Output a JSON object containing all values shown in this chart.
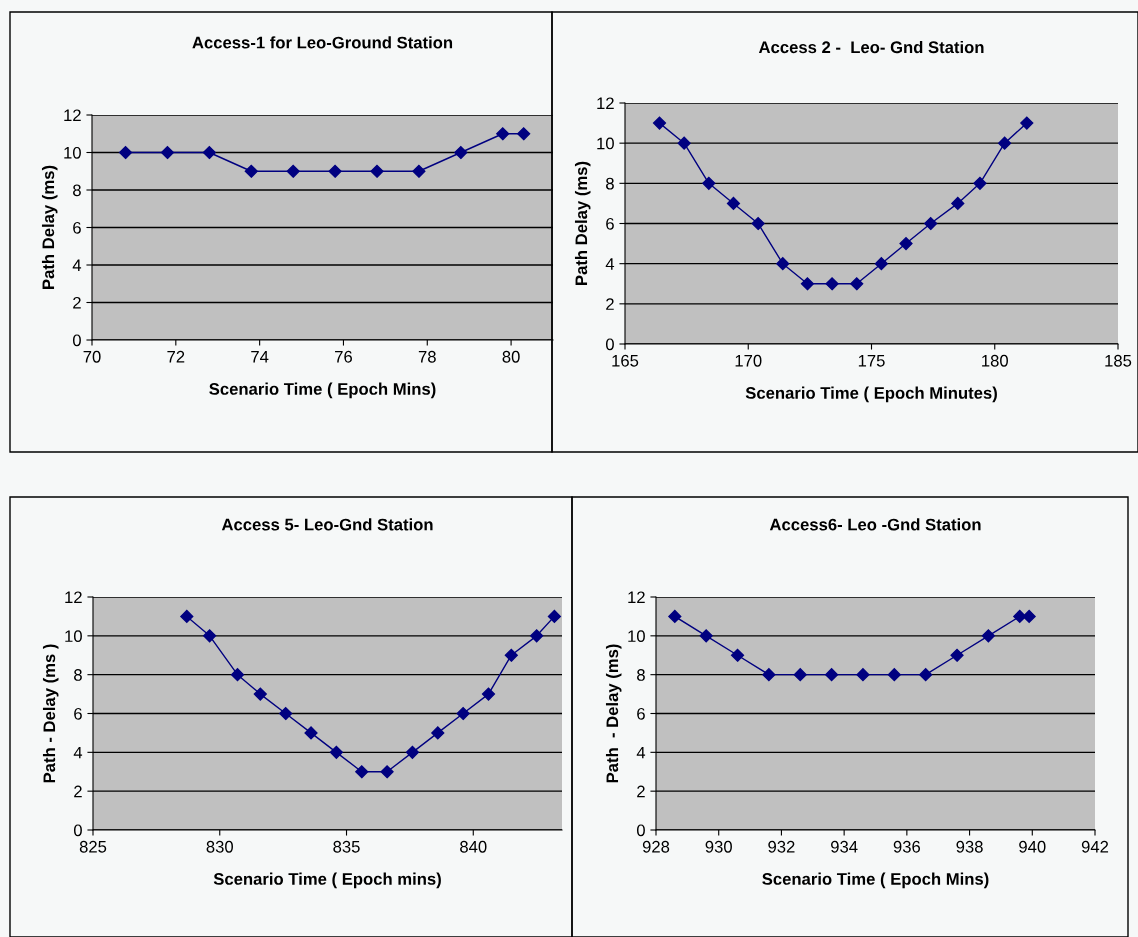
{
  "chart_data": [
    {
      "type": "line",
      "title": "Access-1 for Leo-Ground Station",
      "xlabel": "Scenario Time ( Epoch Mins)",
      "ylabel": "Path Delay (ms)",
      "x": [
        70.8,
        71.8,
        72.8,
        73.8,
        74.8,
        75.8,
        76.8,
        77.8,
        78.8,
        79.8,
        80.3
      ],
      "series": [
        {
          "color": "#000080",
          "values": [
            10,
            10,
            10,
            9,
            9,
            9,
            9,
            9,
            10,
            11,
            11
          ]
        }
      ],
      "xlim": [
        70,
        81
      ],
      "xticks": [
        70,
        72,
        74,
        76,
        78,
        80
      ],
      "ylim": [
        0,
        12
      ],
      "yticks": [
        0,
        2,
        4,
        6,
        8,
        10,
        12
      ],
      "grid": "y",
      "marker": "diamond",
      "legend": false
    },
    {
      "type": "line",
      "title": "Access 2 -  Leo- Gnd Station",
      "xlabel": "Scenario Time ( Epoch Minutes)",
      "ylabel": "Path Delay (ms)",
      "x": [
        166.4,
        167.4,
        168.4,
        169.4,
        170.4,
        171.4,
        172.4,
        173.4,
        174.4,
        175.4,
        176.4,
        177.4,
        178.5,
        179.4,
        180.4,
        181.3
      ],
      "series": [
        {
          "color": "#000080",
          "values": [
            11,
            10,
            8,
            7,
            6,
            4,
            3,
            3,
            3,
            4,
            5,
            6,
            7,
            8,
            10,
            11
          ]
        }
      ],
      "xlim": [
        165,
        185
      ],
      "xticks": [
        165,
        170,
        175,
        180,
        185
      ],
      "ylim": [
        0,
        12
      ],
      "yticks": [
        0,
        2,
        4,
        6,
        8,
        10,
        12
      ],
      "grid": "y",
      "marker": "diamond",
      "legend": false
    },
    {
      "type": "line",
      "title": "Access 5- Leo-Gnd Station",
      "xlabel": "Scenario Time ( Epoch mins)",
      "ylabel": "Path - Delay (ms )",
      "x": [
        828.7,
        829.6,
        830.7,
        831.6,
        832.6,
        833.6,
        834.6,
        835.6,
        836.6,
        837.6,
        838.6,
        839.6,
        840.6,
        841.5,
        842.5,
        843.2
      ],
      "series": [
        {
          "color": "#000080",
          "values": [
            11,
            10,
            8,
            7,
            6,
            5,
            4,
            3,
            3,
            4,
            5,
            6,
            7,
            9,
            10,
            11
          ]
        }
      ],
      "xlim": [
        825,
        843.5
      ],
      "xticks": [
        825,
        830,
        835,
        840
      ],
      "ylim": [
        0,
        12
      ],
      "yticks": [
        0,
        2,
        4,
        6,
        8,
        10,
        12
      ],
      "grid": "y",
      "marker": "diamond",
      "legend": false
    },
    {
      "type": "line",
      "title": "Access6- Leo -Gnd Station",
      "xlabel": "Scenario Time ( Epoch Mins)",
      "ylabel": "Path  - Delay (ms)",
      "x": [
        928.6,
        929.6,
        930.6,
        931.6,
        932.6,
        933.6,
        934.6,
        935.6,
        936.6,
        937.6,
        938.6,
        939.6,
        939.9
      ],
      "series": [
        {
          "color": "#000080",
          "values": [
            11,
            10,
            9,
            8,
            8,
            8,
            8,
            8,
            8,
            9,
            10,
            11,
            11
          ]
        }
      ],
      "xlim": [
        928,
        942
      ],
      "xticks": [
        928,
        930,
        932,
        934,
        936,
        938,
        940,
        942
      ],
      "ylim": [
        0,
        12
      ],
      "yticks": [
        0,
        2,
        4,
        6,
        8,
        10,
        12
      ],
      "grid": "y",
      "marker": "diamond",
      "legend": false
    }
  ]
}
